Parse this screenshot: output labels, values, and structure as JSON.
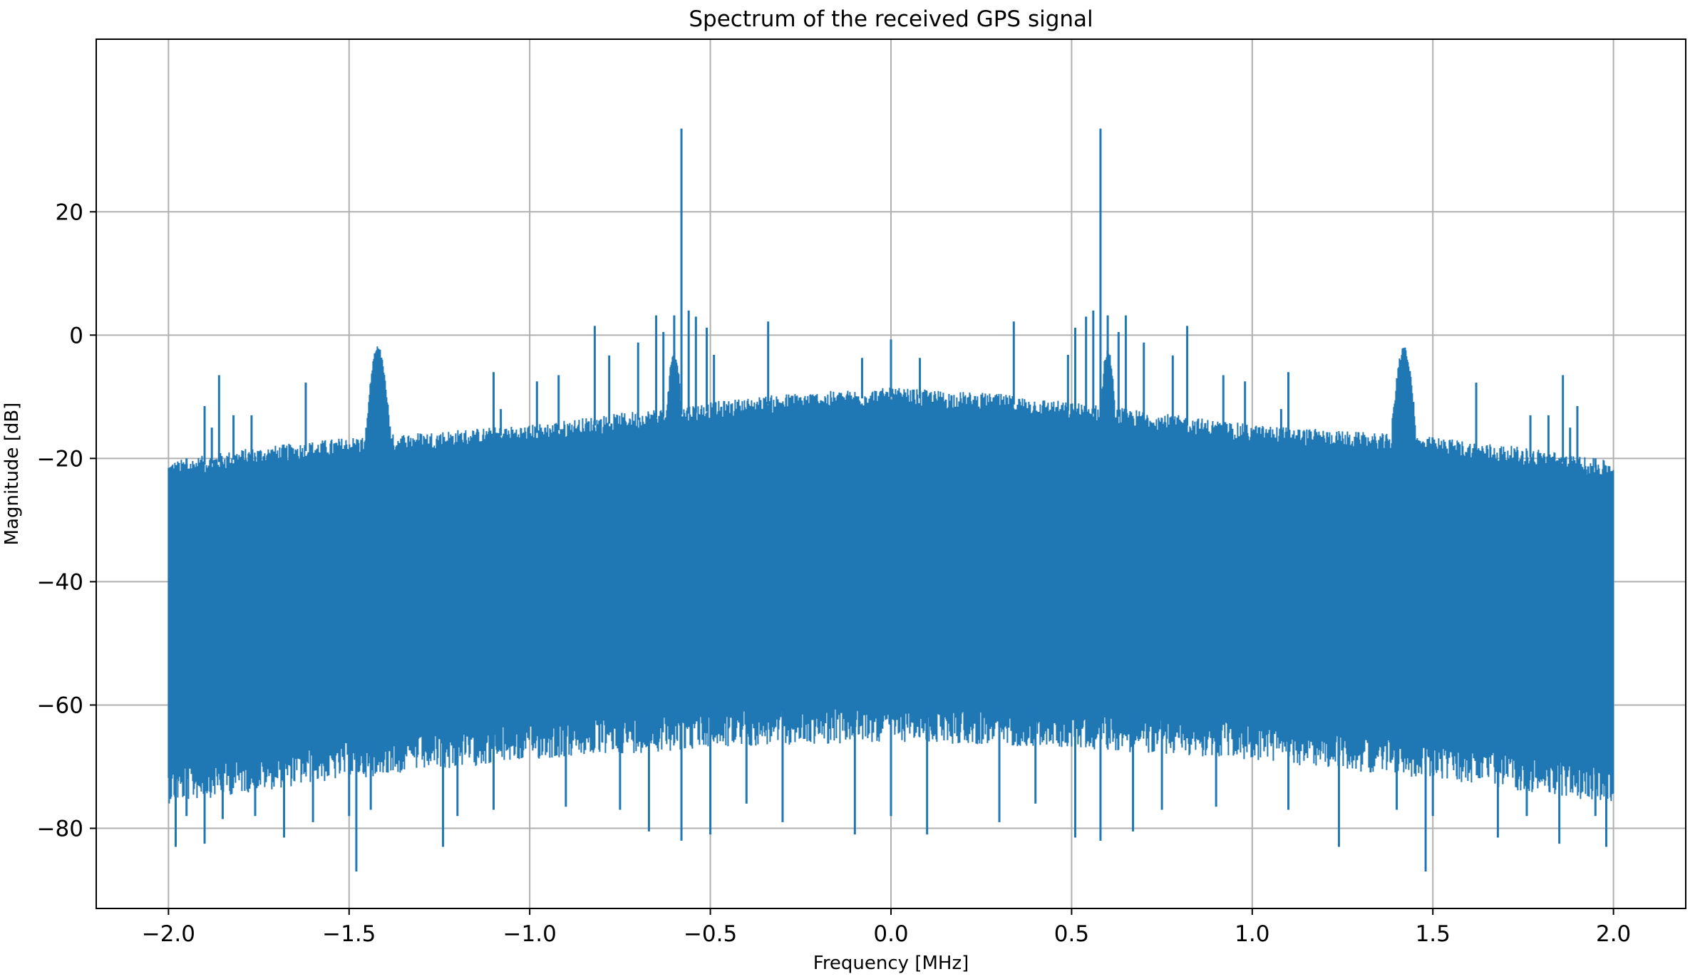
{
  "chart_data": {
    "type": "line",
    "title": "Spectrum of the received GPS signal",
    "xlabel": "Frequency [MHz]",
    "ylabel": "Magnitude [dB]",
    "xlim": [
      -2.2,
      2.2
    ],
    "ylim": [
      -93,
      48
    ],
    "grid": true,
    "xticks": [
      -2.0,
      -1.5,
      -1.0,
      -0.5,
      0.0,
      0.5,
      1.0,
      1.5,
      2.0
    ],
    "xtick_labels": [
      "−2.0",
      "−1.5",
      "−1.0",
      "−0.5",
      "0.0",
      "0.5",
      "1.0",
      "1.5",
      "2.0"
    ],
    "yticks": [
      -80,
      -60,
      -40,
      -20,
      0,
      20
    ],
    "ytick_labels": [
      "−80",
      "−60",
      "−40",
      "−20",
      "0",
      "20"
    ],
    "series": [
      {
        "color": "#1f77b4",
        "x_range": [
          -2.0,
          2.0
        ],
        "envelope": {
          "upper": [
            [
              -2.0,
              -22
            ],
            [
              -1.8,
              -20
            ],
            [
              -1.5,
              -18
            ],
            [
              -1.0,
              -16
            ],
            [
              -0.6,
              -13
            ],
            [
              -0.3,
              -11
            ],
            [
              0.0,
              -10
            ],
            [
              0.3,
              -11
            ],
            [
              0.6,
              -13
            ],
            [
              1.0,
              -16
            ],
            [
              1.5,
              -18
            ],
            [
              1.8,
              -20
            ],
            [
              2.0,
              -22
            ]
          ],
          "lower": [
            [
              -2.0,
              -70
            ],
            [
              -1.5,
              -66
            ],
            [
              -1.0,
              -63
            ],
            [
              -0.5,
              -61
            ],
            [
              0.0,
              -60
            ],
            [
              0.5,
              -61
            ],
            [
              1.0,
              -63
            ],
            [
              1.5,
              -66
            ],
            [
              2.0,
              -70
            ]
          ]
        },
        "bumps": [
          {
            "center": -1.42,
            "peak": -2.5,
            "halfwidth": 0.035
          },
          {
            "center": 1.42,
            "peak": -2.5,
            "halfwidth": 0.035
          },
          {
            "center": -0.6,
            "peak": -3,
            "halfwidth": 0.02
          },
          {
            "center": 0.6,
            "peak": -3,
            "halfwidth": 0.02
          }
        ],
        "spikes_up": [
          [
            -1.95,
            -20
          ],
          [
            -1.93,
            -23
          ],
          [
            -1.9,
            -11.5
          ],
          [
            -1.88,
            -15
          ],
          [
            -1.86,
            -6.5
          ],
          [
            -1.82,
            -13
          ],
          [
            -1.77,
            -13
          ],
          [
            -1.62,
            -7.7
          ],
          [
            -1.1,
            -6
          ],
          [
            -1.08,
            -12
          ],
          [
            -0.98,
            -7.5
          ],
          [
            -0.92,
            -6.5
          ],
          [
            -0.82,
            1.5
          ],
          [
            -0.78,
            -3.3
          ],
          [
            -0.7,
            -1.2
          ],
          [
            -0.65,
            3.2
          ],
          [
            -0.63,
            0.5
          ],
          [
            -0.6,
            3.2
          ],
          [
            -0.58,
            33.5
          ],
          [
            -0.56,
            4
          ],
          [
            -0.54,
            3
          ],
          [
            -0.51,
            1.2
          ],
          [
            -0.49,
            -3.2
          ],
          [
            -0.34,
            2.2
          ],
          [
            -0.08,
            -3.7
          ],
          [
            0.0,
            -0.7
          ],
          [
            0.08,
            -3.7
          ],
          [
            0.34,
            2.2
          ],
          [
            0.49,
            -3.2
          ],
          [
            0.51,
            1.2
          ],
          [
            0.54,
            3
          ],
          [
            0.56,
            4
          ],
          [
            0.58,
            33.5
          ],
          [
            0.6,
            3.2
          ],
          [
            0.63,
            0.5
          ],
          [
            0.65,
            3.2
          ],
          [
            0.7,
            -1.2
          ],
          [
            0.78,
            -3.3
          ],
          [
            0.82,
            1.5
          ],
          [
            0.92,
            -6.5
          ],
          [
            0.98,
            -7.5
          ],
          [
            1.08,
            -12
          ],
          [
            1.1,
            -6
          ],
          [
            1.62,
            -7.7
          ],
          [
            1.77,
            -13
          ],
          [
            1.82,
            -13
          ],
          [
            1.86,
            -6.5
          ],
          [
            1.88,
            -15
          ],
          [
            1.9,
            -11.5
          ],
          [
            1.93,
            -23
          ],
          [
            1.95,
            -20
          ]
        ],
        "spikes_down": [
          [
            -1.98,
            -83
          ],
          [
            -1.95,
            -78
          ],
          [
            -1.9,
            -82.5
          ],
          [
            -1.85,
            -78.5
          ],
          [
            -1.76,
            -78
          ],
          [
            -1.68,
            -81.5
          ],
          [
            -1.6,
            -79
          ],
          [
            -1.5,
            -78
          ],
          [
            -1.48,
            -87
          ],
          [
            -1.44,
            -77
          ],
          [
            -1.24,
            -83
          ],
          [
            -1.2,
            -78
          ],
          [
            -1.1,
            -77
          ],
          [
            -0.9,
            -76.5
          ],
          [
            -0.75,
            -77
          ],
          [
            -0.67,
            -80.5
          ],
          [
            -0.58,
            -82
          ],
          [
            -0.5,
            -81
          ],
          [
            -0.4,
            -76
          ],
          [
            -0.3,
            -79
          ],
          [
            -0.1,
            -81
          ],
          [
            0.0,
            -78
          ],
          [
            0.1,
            -81
          ],
          [
            0.3,
            -79
          ],
          [
            0.4,
            -76
          ],
          [
            0.51,
            -81.5
          ],
          [
            0.58,
            -82
          ],
          [
            0.67,
            -80.5
          ],
          [
            0.75,
            -77
          ],
          [
            0.9,
            -76.5
          ],
          [
            1.1,
            -77
          ],
          [
            1.24,
            -83
          ],
          [
            1.4,
            -77
          ],
          [
            1.48,
            -87
          ],
          [
            1.5,
            -78
          ],
          [
            1.68,
            -81.5
          ],
          [
            1.76,
            -78
          ],
          [
            1.85,
            -82.5
          ],
          [
            1.95,
            -78
          ],
          [
            1.98,
            -83
          ]
        ]
      }
    ]
  }
}
